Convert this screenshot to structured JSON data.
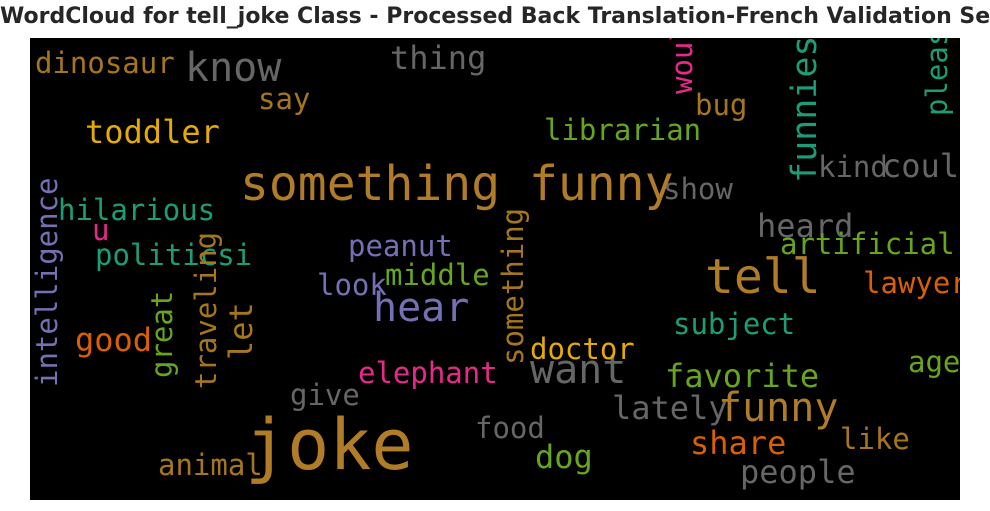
{
  "title": "WordCloud for tell_joke Class - Processed Back Translation-French Validation Set",
  "chart_data": {
    "type": "wordcloud",
    "background": "#000000",
    "words": [
      {
        "text": "joke",
        "weight": 1.0,
        "color": "#b07c28",
        "rotated": false
      },
      {
        "text": "something funny",
        "weight": 0.6,
        "color": "#b07c28",
        "rotated": false
      },
      {
        "text": "tell",
        "weight": 0.6,
        "color": "#b07c28",
        "rotated": false
      },
      {
        "text": "hear",
        "weight": 0.45,
        "color": "#7570b3",
        "rotated": false
      },
      {
        "text": "want",
        "weight": 0.45,
        "color": "#666666",
        "rotated": false
      },
      {
        "text": "know",
        "weight": 0.45,
        "color": "#666666",
        "rotated": false
      },
      {
        "text": "funny",
        "weight": 0.45,
        "color": "#b07c28",
        "rotated": false
      },
      {
        "text": "funniest",
        "weight": 0.36,
        "color": "#1b9e77",
        "rotated": true
      },
      {
        "text": "good",
        "weight": 0.3,
        "color": "#d95f02",
        "rotated": false
      },
      {
        "text": "toddler",
        "weight": 0.3,
        "color": "#e6ab02",
        "rotated": false
      },
      {
        "text": "heard",
        "weight": 0.3,
        "color": "#666666",
        "rotated": false
      },
      {
        "text": "could",
        "weight": 0.3,
        "color": "#666666",
        "rotated": false
      },
      {
        "text": "thing",
        "weight": 0.3,
        "color": "#666666",
        "rotated": false
      },
      {
        "text": "favorite",
        "weight": 0.3,
        "color": "#66a61e",
        "rotated": false
      },
      {
        "text": "lately",
        "weight": 0.3,
        "color": "#666666",
        "rotated": false
      },
      {
        "text": "dog",
        "weight": 0.3,
        "color": "#66a61e",
        "rotated": false
      },
      {
        "text": "share",
        "weight": 0.3,
        "color": "#d95f02",
        "rotated": false
      },
      {
        "text": "people",
        "weight": 0.3,
        "color": "#666666",
        "rotated": false
      },
      {
        "text": "let",
        "weight": 0.3,
        "color": "#a6761d",
        "rotated": true
      },
      {
        "text": "intelligence",
        "weight": 0.24,
        "color": "#7570b3",
        "rotated": true
      },
      {
        "text": "dinosaur",
        "weight": 0.24,
        "color": "#a6761d",
        "rotated": false
      },
      {
        "text": "say",
        "weight": 0.24,
        "color": "#a6761d",
        "rotated": false
      },
      {
        "text": "would",
        "weight": 0.24,
        "color": "#e7298a",
        "rotated": true
      },
      {
        "text": "bug",
        "weight": 0.24,
        "color": "#a6761d",
        "rotated": false
      },
      {
        "text": "please",
        "weight": 0.24,
        "color": "#1b9e77",
        "rotated": true
      },
      {
        "text": "librarian",
        "weight": 0.24,
        "color": "#66a61e",
        "rotated": false
      },
      {
        "text": "kind",
        "weight": 0.24,
        "color": "#666666",
        "rotated": false
      },
      {
        "text": "show",
        "weight": 0.24,
        "color": "#666666",
        "rotated": false
      },
      {
        "text": "hilarious",
        "weight": 0.24,
        "color": "#1b9e77",
        "rotated": false
      },
      {
        "text": "u",
        "weight": 0.24,
        "color": "#e7298a",
        "rotated": false
      },
      {
        "text": "politicsi",
        "weight": 0.24,
        "color": "#1b9e77",
        "rotated": false
      },
      {
        "text": "peanut",
        "weight": 0.24,
        "color": "#7570b3",
        "rotated": false
      },
      {
        "text": "artificial",
        "weight": 0.24,
        "color": "#66a61e",
        "rotated": false
      },
      {
        "text": "look",
        "weight": 0.24,
        "color": "#7570b3",
        "rotated": false
      },
      {
        "text": "middle",
        "weight": 0.24,
        "color": "#66a61e",
        "rotated": false
      },
      {
        "text": "lawyer",
        "weight": 0.24,
        "color": "#d95f02",
        "rotated": false
      },
      {
        "text": "great",
        "weight": 0.24,
        "color": "#66a61e",
        "rotated": true
      },
      {
        "text": "traveling",
        "weight": 0.24,
        "color": "#a6761d",
        "rotated": true
      },
      {
        "text": "something",
        "weight": 0.24,
        "color": "#a6761d",
        "rotated": true
      },
      {
        "text": "subject",
        "weight": 0.24,
        "color": "#1b9e77",
        "rotated": false
      },
      {
        "text": "doctor",
        "weight": 0.24,
        "color": "#e6ab02",
        "rotated": false
      },
      {
        "text": "age",
        "weight": 0.24,
        "color": "#66a61e",
        "rotated": false
      },
      {
        "text": "elephant",
        "weight": 0.24,
        "color": "#e7298a",
        "rotated": false
      },
      {
        "text": "give",
        "weight": 0.24,
        "color": "#666666",
        "rotated": false
      },
      {
        "text": "food",
        "weight": 0.24,
        "color": "#666666",
        "rotated": false
      },
      {
        "text": "like",
        "weight": 0.24,
        "color": "#a6761d",
        "rotated": false
      },
      {
        "text": "animal",
        "weight": 0.24,
        "color": "#a6761d",
        "rotated": false
      }
    ]
  }
}
